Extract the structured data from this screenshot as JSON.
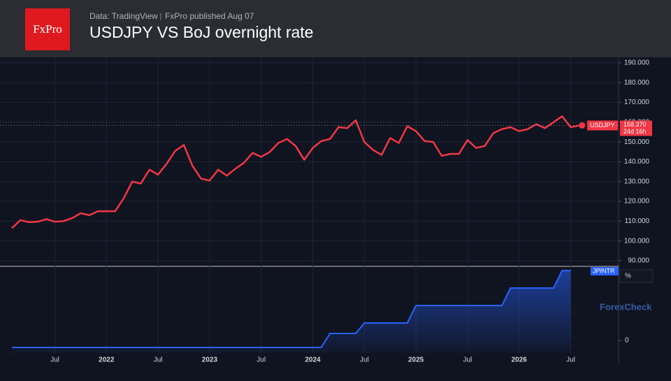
{
  "header": {
    "logo": "FxPro",
    "source": "Data: TradingView",
    "published": "FxPro published Aug 07",
    "title": "USDJPY VS BoJ overnight rate"
  },
  "watermark": "ForexCheck",
  "chart_data": [
    {
      "type": "line",
      "categories": [
        null,
        null,
        null,
        null,
        null,
        "Jul",
        null,
        null,
        null,
        null,
        null,
        "2022",
        null,
        null,
        null,
        null,
        null,
        "Jul",
        null,
        null,
        null,
        null,
        null,
        "2023",
        null,
        null,
        null,
        null,
        null,
        "Jul",
        null,
        null,
        null,
        null,
        null,
        "2024",
        null,
        null,
        null,
        null,
        null,
        "Jul",
        null,
        null,
        null,
        null,
        null,
        "2025",
        null,
        null,
        null,
        null,
        null,
        "Jul",
        null,
        null,
        null,
        null,
        null,
        "2026",
        null,
        null,
        null,
        null,
        null,
        "Jul",
        null
      ],
      "series": [
        {
          "name": "USDJPY",
          "color": "#f23645",
          "values": [
            106.5,
            110.5,
            109.5,
            109.7,
            111,
            109.7,
            110,
            111.5,
            114,
            113,
            115,
            115,
            115,
            121.5,
            130,
            129,
            136,
            133.5,
            139,
            145.5,
            148.5,
            138,
            131.5,
            130.5,
            136,
            133,
            136.5,
            139.5,
            144.5,
            142.5,
            145,
            149.5,
            151.5,
            148,
            141,
            147,
            150.5,
            151.5,
            157.5,
            157,
            161,
            150,
            146,
            143.5,
            152,
            149.5,
            158,
            155.5,
            150.5,
            150,
            143,
            144,
            144,
            151,
            147,
            148,
            154.5,
            156.5,
            157.5,
            155.5,
            156.5,
            159,
            157,
            160,
            163,
            157.5,
            158.37
          ]
        }
      ],
      "last_price_label": "158.370",
      "countdown": "24d 16h",
      "ylim": [
        87.5,
        192.8
      ],
      "yticks": [
        {
          "value": 90,
          "label": "90.000"
        },
        {
          "value": 100,
          "label": "100.000"
        },
        {
          "value": 110,
          "label": "110.000"
        },
        {
          "value": 120,
          "label": "120.000"
        },
        {
          "value": 130,
          "label": "130.000"
        },
        {
          "value": 140,
          "label": "140.000"
        },
        {
          "value": 150,
          "label": "150.000"
        },
        {
          "value": 160,
          "label": "160.000"
        },
        {
          "value": 170,
          "label": "170.000"
        },
        {
          "value": 180,
          "label": "180.000"
        },
        {
          "value": 190,
          "label": "190.000"
        }
      ],
      "grid": true
    },
    {
      "type": "area",
      "series": [
        {
          "name": "JPINTR",
          "color": "#2962ff",
          "values": [
            -0.1,
            -0.1,
            -0.1,
            -0.1,
            -0.1,
            -0.1,
            -0.1,
            -0.1,
            -0.1,
            -0.1,
            -0.1,
            -0.1,
            -0.1,
            -0.1,
            -0.1,
            -0.1,
            -0.1,
            -0.1,
            -0.1,
            -0.1,
            -0.1,
            -0.1,
            -0.1,
            -0.1,
            -0.1,
            -0.1,
            -0.1,
            -0.1,
            -0.1,
            -0.1,
            -0.1,
            -0.1,
            -0.1,
            -0.1,
            -0.1,
            -0.1,
            -0.1,
            0.1,
            0.1,
            0.1,
            0.1,
            0.25,
            0.25,
            0.25,
            0.25,
            0.25,
            0.25,
            0.5,
            0.5,
            0.5,
            0.5,
            0.5,
            0.5,
            0.5,
            0.5,
            0.5,
            0.5,
            0.5,
            0.75,
            0.75,
            0.75,
            0.75,
            0.75,
            0.75,
            1,
            1,
            null
          ]
        }
      ],
      "units": "%",
      "ylim": [
        -0.18,
        1.06
      ],
      "yticks": [
        0
      ]
    }
  ]
}
